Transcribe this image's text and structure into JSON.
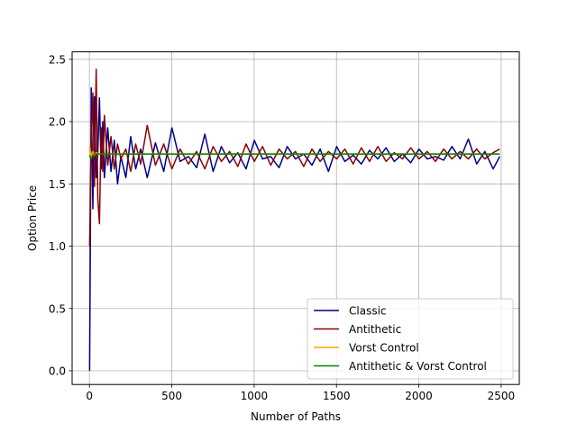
{
  "chart_data": {
    "type": "line",
    "title": "",
    "xlabel": "Number of Paths",
    "ylabel": "Option Price",
    "xlim": [
      -105,
      2610
    ],
    "ylim": [
      -0.11,
      2.56
    ],
    "xticks": [
      0,
      500,
      1000,
      1500,
      2000,
      2500
    ],
    "yticks": [
      0.0,
      0.5,
      1.0,
      1.5,
      2.0,
      2.5
    ],
    "xtick_labels": [
      "0",
      "500",
      "1000",
      "1500",
      "2000",
      "2500"
    ],
    "ytick_labels": [
      "0.0",
      "0.5",
      "1.0",
      "1.5",
      "2.0",
      "2.5"
    ],
    "grid": true,
    "legend_position": "bottom-right",
    "series": [
      {
        "name": "Classic",
        "color": "#00008b",
        "x": [
          1,
          11,
          21,
          31,
          41,
          51,
          61,
          71,
          81,
          91,
          111,
          131,
          151,
          171,
          191,
          221,
          251,
          281,
          311,
          351,
          401,
          451,
          501,
          551,
          601,
          651,
          701,
          751,
          801,
          851,
          901,
          951,
          1001,
          1051,
          1101,
          1151,
          1201,
          1251,
          1301,
          1351,
          1401,
          1451,
          1501,
          1551,
          1601,
          1651,
          1701,
          1751,
          1801,
          1851,
          1901,
          1951,
          2001,
          2051,
          2101,
          2151,
          2201,
          2251,
          2301,
          2351,
          2401,
          2451,
          2491
        ],
        "values": [
          0.0,
          2.27,
          1.3,
          2.2,
          1.55,
          1.75,
          2.19,
          1.62,
          2.0,
          1.55,
          1.95,
          1.6,
          1.85,
          1.5,
          1.72,
          1.55,
          1.88,
          1.62,
          1.78,
          1.55,
          1.83,
          1.6,
          1.95,
          1.68,
          1.72,
          1.63,
          1.9,
          1.6,
          1.8,
          1.67,
          1.75,
          1.62,
          1.85,
          1.7,
          1.72,
          1.63,
          1.8,
          1.7,
          1.74,
          1.65,
          1.78,
          1.6,
          1.8,
          1.68,
          1.73,
          1.66,
          1.77,
          1.7,
          1.79,
          1.68,
          1.74,
          1.67,
          1.78,
          1.7,
          1.72,
          1.69,
          1.8,
          1.7,
          1.86,
          1.66,
          1.76,
          1.62,
          1.72
        ]
      },
      {
        "name": "Antithetic",
        "color": "#8b0000",
        "x": [
          1,
          11,
          21,
          31,
          41,
          51,
          61,
          71,
          81,
          91,
          111,
          131,
          151,
          171,
          191,
          221,
          251,
          281,
          311,
          351,
          401,
          451,
          501,
          551,
          601,
          651,
          701,
          751,
          801,
          851,
          901,
          951,
          1001,
          1051,
          1101,
          1151,
          1201,
          1251,
          1301,
          1351,
          1401,
          1451,
          1501,
          1551,
          1601,
          1651,
          1701,
          1751,
          1801,
          1851,
          1901,
          1951,
          2001,
          2051,
          2101,
          2151,
          2201,
          2251,
          2301,
          2351,
          2401,
          2451,
          2491
        ],
        "values": [
          1.0,
          1.83,
          2.23,
          1.48,
          2.42,
          1.38,
          1.18,
          1.95,
          1.6,
          2.05,
          1.65,
          1.88,
          1.62,
          1.82,
          1.7,
          1.78,
          1.6,
          1.82,
          1.66,
          1.97,
          1.65,
          1.82,
          1.62,
          1.78,
          1.66,
          1.76,
          1.62,
          1.8,
          1.68,
          1.76,
          1.64,
          1.82,
          1.68,
          1.8,
          1.65,
          1.78,
          1.7,
          1.76,
          1.64,
          1.78,
          1.68,
          1.76,
          1.7,
          1.78,
          1.66,
          1.79,
          1.68,
          1.8,
          1.68,
          1.75,
          1.7,
          1.79,
          1.7,
          1.76,
          1.68,
          1.78,
          1.7,
          1.76,
          1.7,
          1.78,
          1.7,
          1.75,
          1.78
        ]
      },
      {
        "name": "Vorst Control",
        "color": "#ffa500",
        "x": [
          1,
          11,
          21,
          31,
          41,
          61,
          81,
          101,
          151,
          201,
          301,
          501,
          1001,
          1501,
          2001,
          2491
        ],
        "values": [
          1.8,
          1.72,
          1.76,
          1.73,
          1.75,
          1.74,
          1.74,
          1.74,
          1.74,
          1.74,
          1.74,
          1.74,
          1.74,
          1.74,
          1.74,
          1.74
        ]
      },
      {
        "name": "Antithetic & Vorst Control",
        "color": "#008000",
        "x": [
          1,
          11,
          21,
          31,
          41,
          61,
          81,
          101,
          151,
          201,
          301,
          501,
          1001,
          1501,
          2001,
          2491
        ],
        "values": [
          1.73,
          1.7,
          1.73,
          1.74,
          1.74,
          1.74,
          1.74,
          1.74,
          1.74,
          1.74,
          1.74,
          1.74,
          1.74,
          1.74,
          1.74,
          1.74
        ]
      }
    ]
  }
}
